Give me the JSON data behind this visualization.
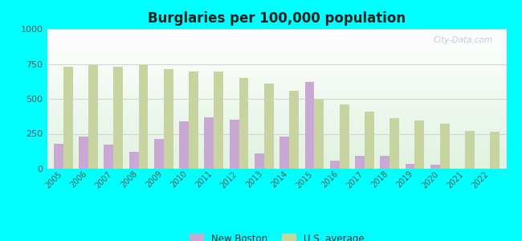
{
  "title": "Burglaries per 100,000 population",
  "years": [
    2005,
    2006,
    2007,
    2008,
    2009,
    2010,
    2011,
    2012,
    2013,
    2014,
    2015,
    2016,
    2017,
    2018,
    2019,
    2020,
    2021,
    2022
  ],
  "new_boston": [
    180,
    230,
    170,
    120,
    210,
    340,
    370,
    350,
    110,
    230,
    620,
    60,
    90,
    90,
    35,
    30,
    0,
    0
  ],
  "us_average": [
    730,
    740,
    730,
    740,
    710,
    695,
    695,
    650,
    610,
    555,
    495,
    460,
    410,
    360,
    345,
    320,
    270,
    265
  ],
  "new_boston_color": "#c9a8d4",
  "us_average_color": "#c8d4a0",
  "background_color": "#00ffff",
  "ylim": [
    0,
    1000
  ],
  "yticks": [
    0,
    250,
    500,
    750,
    1000
  ],
  "bar_width": 0.38,
  "legend_new_boston": "New Boston",
  "legend_us_average": "U.S. average",
  "watermark": "City-Data.com"
}
